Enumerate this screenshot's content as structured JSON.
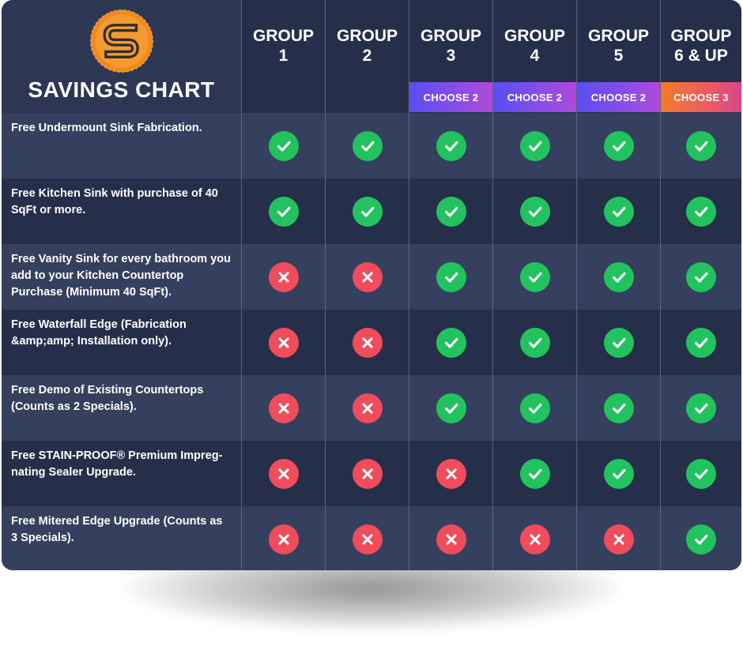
{
  "chart_title": "SAVINGS CHART",
  "groups": [
    {
      "name": "GROUP\n1",
      "choose": ""
    },
    {
      "name": "GROUP\n2",
      "choose": ""
    },
    {
      "name": "GROUP\n3",
      "choose": "CHOOSE 2"
    },
    {
      "name": "GROUP\n4",
      "choose": "CHOOSE 2"
    },
    {
      "name": "GROUP\n5",
      "choose": "CHOOSE 2"
    },
    {
      "name": "GROUP\n6 & UP",
      "choose": "CHOOSE 3"
    }
  ],
  "colors": {
    "yes": "#22c35e",
    "no": "#f04c5c",
    "logo_orange": "#f08a1c"
  },
  "features": [
    {
      "label": "Free Undermount Sink Fabrication.",
      "included": [
        true,
        true,
        true,
        true,
        true,
        true
      ]
    },
    {
      "label": "Free Kitchen Sink with purchase of 40 SqFt or more.",
      "included": [
        true,
        true,
        true,
        true,
        true,
        true
      ]
    },
    {
      "label": "Free Vanity Sink for every bathroom you add to your Kitchen Countertop Purchase (Minimum 40 SqFt).",
      "included": [
        false,
        false,
        true,
        true,
        true,
        true
      ]
    },
    {
      "label": "Free Waterfall Edge (Fabrication &amp;amp; Installation only).",
      "included": [
        false,
        false,
        true,
        true,
        true,
        true
      ]
    },
    {
      "label": "Free Demo of Existing Countertops (Counts as 2 Specials).",
      "included": [
        false,
        false,
        true,
        true,
        true,
        true
      ]
    },
    {
      "label": "Free STAIN-PROOF® Premium Impreg-nating Sealer Upgrade.",
      "included": [
        false,
        false,
        false,
        true,
        true,
        true
      ]
    },
    {
      "label": "Free Mitered Edge Upgrade (Counts as 3 Specials).",
      "included": [
        false,
        false,
        false,
        false,
        false,
        true
      ]
    }
  ]
}
